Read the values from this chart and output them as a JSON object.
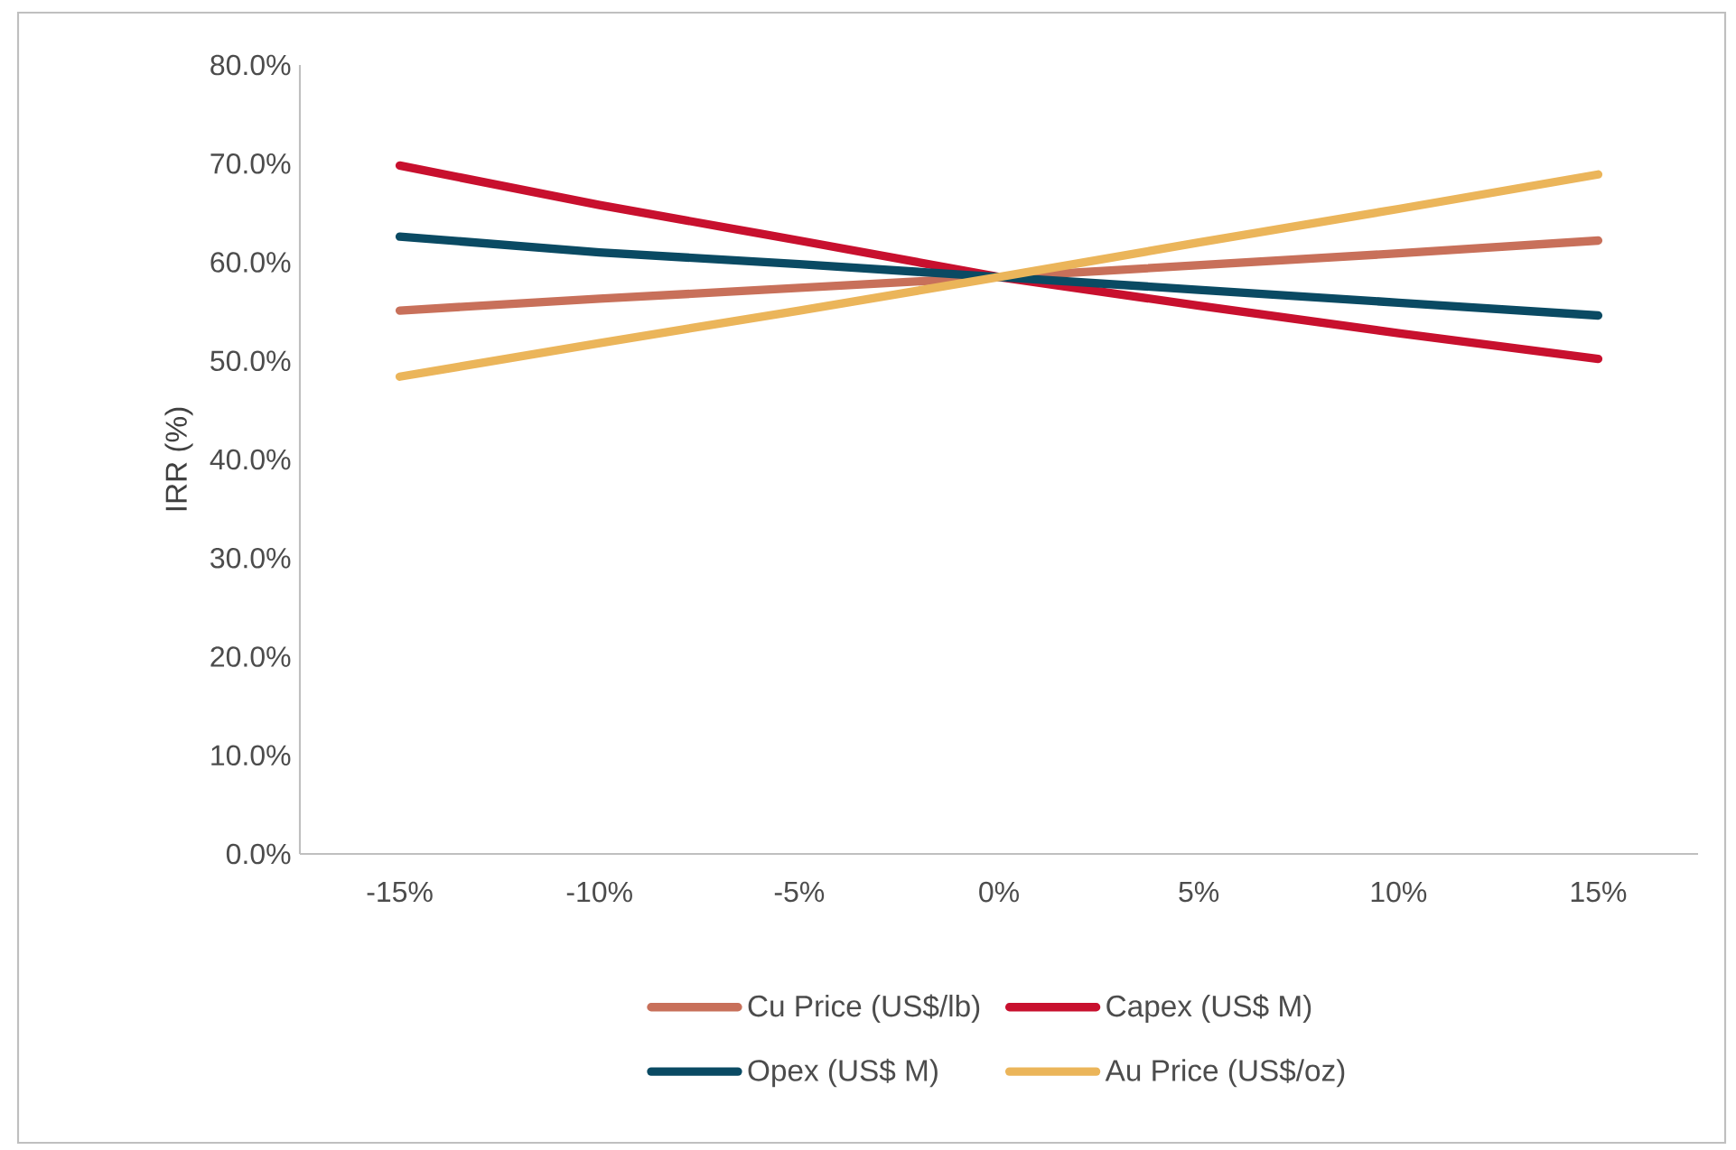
{
  "chart_data": {
    "type": "line",
    "ylabel": "IRR (%)",
    "categories": [
      "-15%",
      "-10%",
      "-5%",
      "0%",
      "5%",
      "10%",
      "15%"
    ],
    "series": [
      {
        "name": "Cu Price (US$/lb)",
        "color": "#c8705a",
        "values": [
          55.1,
          56.3,
          57.4,
          58.5,
          59.7,
          60.9,
          62.2
        ]
      },
      {
        "name": "Capex (US$ M)",
        "color": "#c8102e",
        "values": [
          69.8,
          65.8,
          62.2,
          58.5,
          55.6,
          52.8,
          50.2
        ]
      },
      {
        "name": "Opex (US$ M)",
        "color": "#0a4a63",
        "values": [
          62.6,
          61.0,
          59.8,
          58.5,
          57.2,
          55.9,
          54.6
        ]
      },
      {
        "name": "Au Price (US$/oz)",
        "color": "#ebb55a",
        "values": [
          48.4,
          51.8,
          55.1,
          58.5,
          62.0,
          65.4,
          68.9
        ]
      }
    ],
    "ylim": [
      0,
      80
    ],
    "yticks": [
      {
        "value": 0,
        "label": "0.0%"
      },
      {
        "value": 10,
        "label": "10.0%"
      },
      {
        "value": 20,
        "label": "20.0%"
      },
      {
        "value": 30,
        "label": "30.0%"
      },
      {
        "value": 40,
        "label": "40.0%"
      },
      {
        "value": 50,
        "label": "50.0%"
      },
      {
        "value": 60,
        "label": "60.0%"
      },
      {
        "value": 70,
        "label": "70.0%"
      },
      {
        "value": 80,
        "label": "80.0%"
      }
    ],
    "legend": "bottom",
    "marker": "none",
    "line_style": "solid"
  }
}
